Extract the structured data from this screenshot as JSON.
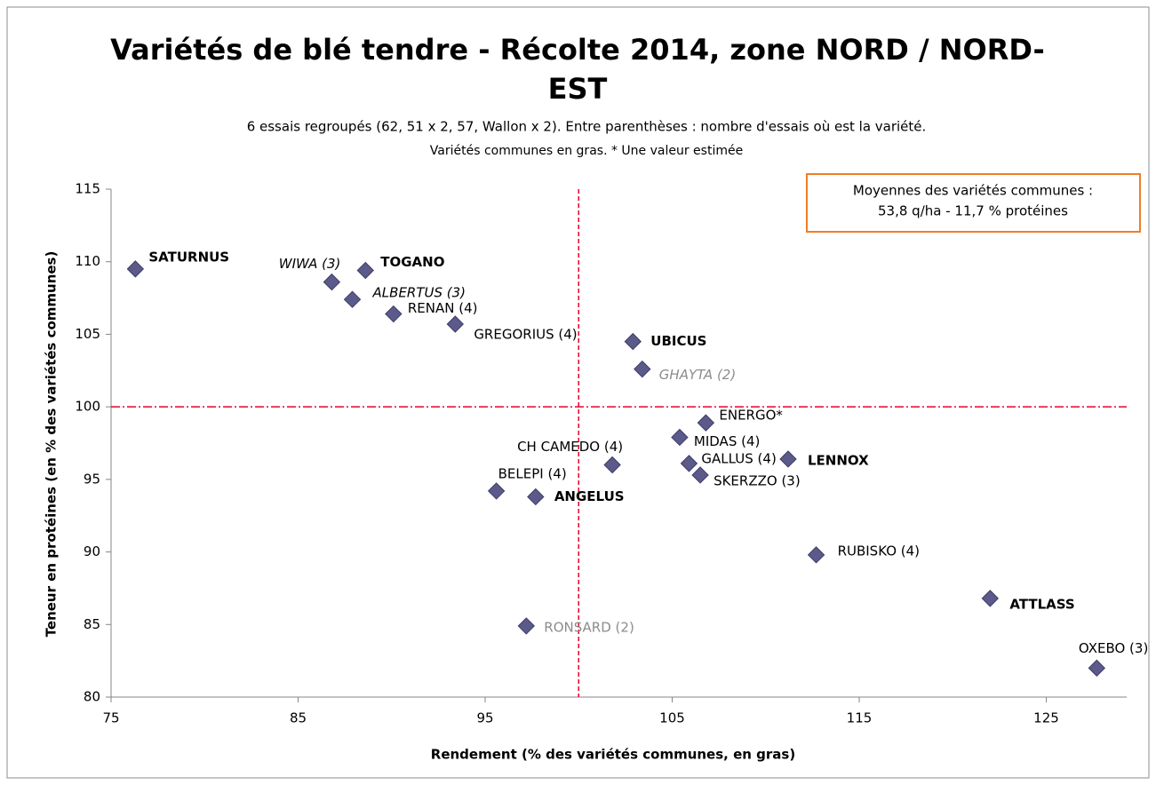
{
  "chart_data": {
    "type": "scatter",
    "title": [
      "Variétés de blé tendre - Récolte 2014, zone NORD / NORD-",
      "EST"
    ],
    "subtitle": [
      "6 essais regroupés (62, 51 x 2, 57, Wallon x 2).  Entre parenthèses : nombre d'essais où est la variété.",
      "Variétés communes en gras.    * Une valeur estimée"
    ],
    "annotation": [
      "Moyennes des variétés communes :",
      "53,8 q/ha  -  11,7 % protéines"
    ],
    "x_label": "Rendement (% des variétés communes, en gras)",
    "y_label": "Teneur en protéines (en % des variétés communes)",
    "labels": [
      "SATURNUS",
      "WIWA (3)",
      "TOGANO",
      "ALBERTUS (3)",
      "RENAN (4)",
      "GREGORIUS (4)",
      "UBICUS",
      "GHAYTA (2)",
      "ENERGO*",
      "MIDAS (4)",
      "CH CAMEDO (4)",
      "GALLUS (4)",
      "LENNOX",
      "SKERZZO (3)",
      "BELEPI (4)",
      "ANGELUS",
      "RUBISKO (4)",
      "ATTLASS",
      "RONSARD (2)",
      "OXEBO (3)"
    ],
    "label_styles": [
      "bold",
      "italic",
      "bold",
      "italic",
      "normal",
      "normal",
      "bold",
      "gray-italic",
      "normal",
      "normal",
      "normal",
      "normal",
      "bold",
      "normal",
      "normal",
      "bold",
      "normal",
      "bold",
      "gray",
      "normal"
    ],
    "x": [
      76.3,
      86.8,
      88.6,
      87.9,
      90.1,
      93.4,
      102.9,
      103.4,
      106.8,
      105.4,
      101.8,
      105.9,
      111.2,
      106.5,
      95.6,
      97.7,
      112.7,
      122.0,
      97.2,
      127.7
    ],
    "values": [
      109.5,
      108.6,
      109.4,
      107.4,
      106.4,
      105.7,
      104.5,
      102.6,
      98.9,
      97.9,
      96.0,
      96.1,
      96.4,
      95.3,
      94.2,
      93.8,
      89.8,
      86.8,
      84.9,
      82.0
    ],
    "color": "#5b5a8a",
    "xlim": [
      75,
      129.3
    ],
    "xticks": [
      75,
      85,
      95,
      105,
      115,
      125
    ],
    "ylim": [
      80,
      115
    ],
    "yticks": [
      80,
      85,
      90,
      95,
      100,
      105,
      110,
      115
    ],
    "reference_lines": {
      "x": 100,
      "y": 100,
      "color": "#e8002a"
    }
  }
}
